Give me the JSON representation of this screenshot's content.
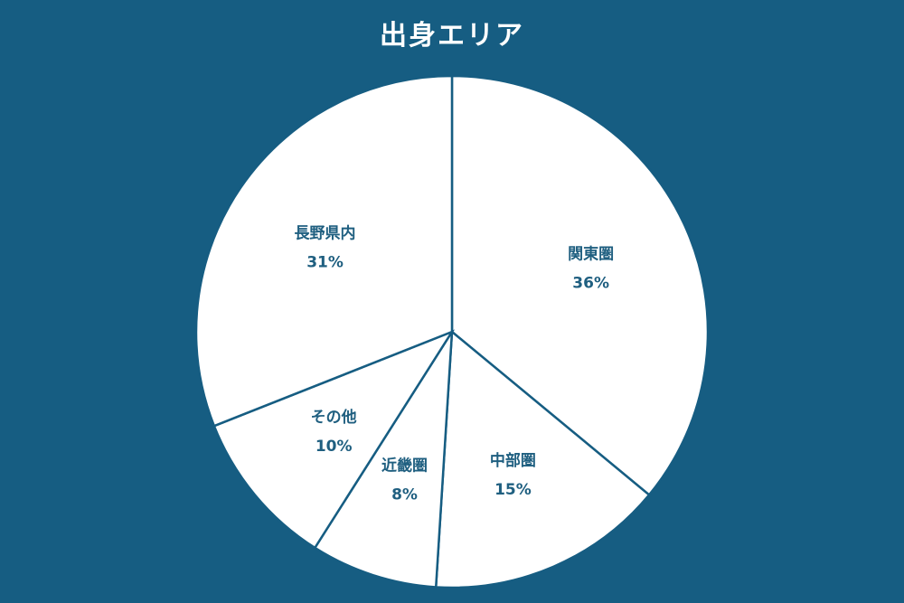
{
  "chart_data": {
    "type": "pie",
    "title": "出身エリア",
    "categories": [
      "関東圏",
      "中部圏",
      "近畿圏",
      "その他",
      "長野県内"
    ],
    "values": [
      36,
      15,
      8,
      10,
      31
    ],
    "value_labels": [
      "36%",
      "15%",
      "8%",
      "10%",
      "31%"
    ],
    "start": "top",
    "direction": "clockwise",
    "legend": "none",
    "colors": {
      "background": "#165d82",
      "slice_fill": "#ffffff",
      "slice_border": "#165d82",
      "label_text": "#1f5f80",
      "title_text": "#ffffff"
    }
  }
}
